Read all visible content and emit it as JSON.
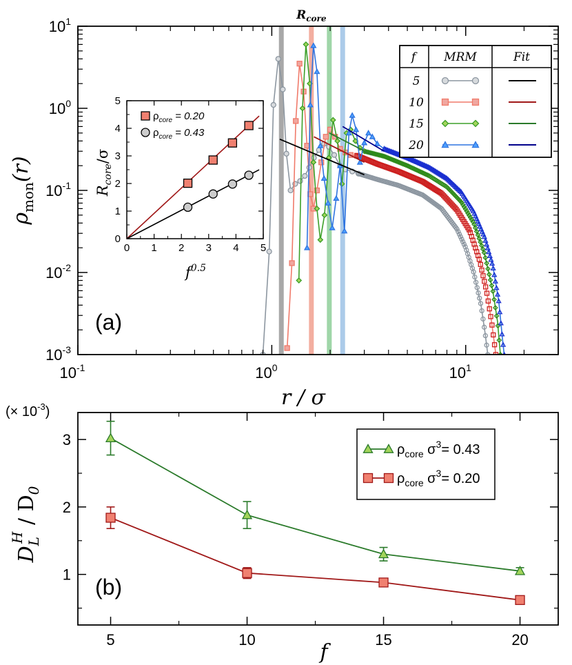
{
  "chart_data": [
    {
      "id": "a",
      "type": "line",
      "panel_label": "(a)",
      "title": "R_core",
      "xlabel": "r / σ",
      "ylabel": "ρ_mon(r)",
      "xscale": "log",
      "yscale": "log",
      "xlim": [
        0.1,
        30
      ],
      "ylim": [
        0.001,
        10
      ],
      "x_ticks": [
        {
          "base": "10",
          "exp": "-1",
          "value": 0.1
        },
        {
          "base": "10",
          "exp": "0",
          "value": 1
        },
        {
          "base": "10",
          "exp": "1",
          "value": 10
        }
      ],
      "y_ticks": [
        {
          "base": "10",
          "exp": "1",
          "value": 10
        },
        {
          "base": "10",
          "exp": "0",
          "value": 1
        },
        {
          "base": "10",
          "exp": "-1",
          "value": 0.1
        },
        {
          "base": "10",
          "exp": "-2",
          "value": 0.01
        },
        {
          "base": "10",
          "exp": "-3",
          "value": 0.001
        }
      ],
      "core_lines": [
        {
          "f": 5,
          "x": 1.12,
          "color": "#999999"
        },
        {
          "f": 10,
          "x": 1.6,
          "color": "#f2a090"
        },
        {
          "f": 15,
          "x": 1.98,
          "color": "#8fd09a"
        },
        {
          "f": 20,
          "x": 2.32,
          "color": "#9dc3e6"
        }
      ],
      "legend": {
        "header": {
          "f": "f",
          "mrm": "MRM",
          "fit": "Fit"
        },
        "rows": [
          {
            "f": "5",
            "marker": "circle",
            "color": "#8c96a0",
            "fill": "#d7dadd",
            "fit_color": "#000000"
          },
          {
            "f": "10",
            "marker": "square",
            "color": "#f07a6a",
            "fill": "#f0a7a0",
            "fit_color": "#a01818"
          },
          {
            "f": "15",
            "marker": "diamond",
            "color": "#3b9f28",
            "fill": "#a3d45b",
            "fit_color": "#2a7a2a"
          },
          {
            "f": "20",
            "marker": "triangle",
            "color": "#2f74e0",
            "fill": "#4da0ff",
            "fit_color": "#00008b"
          }
        ]
      },
      "series": [
        {
          "name": "f=5 MRM",
          "color": "#8c96a0",
          "dense_color": "#8c96a0",
          "points": [
            [
              0.9,
              0.001
            ],
            [
              0.97,
              0.018
            ],
            [
              1.02,
              1.1
            ],
            [
              1.08,
              4.0
            ],
            [
              1.14,
              1.7
            ],
            [
              1.19,
              0.28
            ],
            [
              1.25,
              0.1
            ],
            [
              1.32,
              0.12
            ],
            [
              1.4,
              0.13
            ],
            [
              1.48,
              0.15
            ],
            [
              1.56,
              0.19
            ],
            [
              1.65,
              0.25
            ],
            [
              1.75,
              0.31
            ],
            [
              1.86,
              0.37
            ],
            [
              1.97,
              0.34
            ],
            [
              2.1,
              0.27
            ],
            [
              2.25,
              0.2
            ],
            [
              2.4,
              0.18
            ],
            [
              2.6,
              0.17
            ],
            [
              2.8,
              0.16
            ]
          ],
          "tail": [
            [
              2.8,
              0.16
            ],
            [
              3.5,
              0.136
            ],
            [
              4.5,
              0.115
            ],
            [
              6,
              0.088
            ],
            [
              7.5,
              0.06
            ],
            [
              9,
              0.034
            ],
            [
              10,
              0.02
            ],
            [
              11,
              0.01
            ],
            [
              12,
              0.004
            ],
            [
              12.6,
              0.0018
            ],
            [
              13,
              0.001
            ]
          ]
        },
        {
          "name": "f=10 MRM",
          "color": "#f07a6a",
          "dense_color": "#cc1f1f",
          "points": [
            [
              1.2,
              0.0012
            ],
            [
              1.27,
              0.013
            ],
            [
              1.33,
              0.7
            ],
            [
              1.39,
              3.5
            ],
            [
              1.46,
              1.6
            ],
            [
              1.52,
              0.35
            ],
            [
              1.58,
              0.09
            ],
            [
              1.64,
              0.06
            ],
            [
              1.71,
              0.1
            ],
            [
              1.8,
              0.22
            ],
            [
              1.9,
              0.45
            ],
            [
              2.0,
              0.55
            ],
            [
              2.12,
              0.45
            ],
            [
              2.25,
              0.32
            ],
            [
              2.4,
              0.29
            ],
            [
              2.55,
              0.27
            ],
            [
              2.75,
              0.265
            ]
          ],
          "tail": [
            [
              2.75,
              0.265
            ],
            [
              3.5,
              0.21
            ],
            [
              4.5,
              0.17
            ],
            [
              6,
              0.128
            ],
            [
              7.5,
              0.092
            ],
            [
              9,
              0.058
            ],
            [
              10.5,
              0.032
            ],
            [
              11.8,
              0.014
            ],
            [
              12.8,
              0.006
            ],
            [
              13.6,
              0.0025
            ],
            [
              14.3,
              0.001
            ]
          ]
        },
        {
          "name": "f=15 MRM",
          "color": "#3b9f28",
          "dense_color": "#2f8a1a",
          "points": [
            [
              1.38,
              0.008
            ],
            [
              1.44,
              1.0
            ],
            [
              1.5,
              6.0
            ],
            [
              1.57,
              2.0
            ],
            [
              1.64,
              0.22
            ],
            [
              1.71,
              0.06
            ],
            [
              1.78,
              0.025
            ],
            [
              1.87,
              0.05
            ],
            [
              1.97,
              0.25
            ],
            [
              2.07,
              0.72
            ],
            [
              2.18,
              0.4
            ],
            [
              2.3,
              0.12
            ],
            [
              2.43,
              0.5
            ],
            [
              2.55,
              0.55
            ],
            [
              2.7,
              0.4
            ],
            [
              2.85,
              0.33
            ],
            [
              3.0,
              0.3
            ]
          ],
          "tail": [
            [
              3.0,
              0.3
            ],
            [
              3.8,
              0.26
            ],
            [
              5,
              0.2
            ],
            [
              6.5,
              0.15
            ],
            [
              8,
              0.11
            ],
            [
              9.5,
              0.072
            ],
            [
              11,
              0.04
            ],
            [
              12.5,
              0.017
            ],
            [
              13.8,
              0.006
            ],
            [
              14.6,
              0.0025
            ],
            [
              15.1,
              0.001
            ]
          ]
        },
        {
          "name": "f=20 MRM",
          "color": "#2f74e0",
          "dense_color": "#1a2fd0",
          "points": [
            [
              1.52,
              0.02
            ],
            [
              1.58,
              1.1
            ],
            [
              1.64,
              5.8
            ],
            [
              1.71,
              2.8
            ],
            [
              1.78,
              0.35
            ],
            [
              1.86,
              0.14
            ],
            [
              1.95,
              0.07
            ],
            [
              2.05,
              0.035
            ],
            [
              2.15,
              0.08
            ],
            [
              2.25,
              0.2
            ],
            [
              2.37,
              0.032
            ],
            [
              2.5,
              0.5
            ],
            [
              2.6,
              0.82
            ],
            [
              2.72,
              0.55
            ],
            [
              2.85,
              0.22
            ],
            [
              3.0,
              0.38
            ],
            [
              3.15,
              0.5
            ],
            [
              3.3,
              0.45
            ],
            [
              3.5,
              0.37
            ],
            [
              3.8,
              0.32
            ]
          ],
          "tail": [
            [
              3.8,
              0.32
            ],
            [
              5,
              0.25
            ],
            [
              6.5,
              0.19
            ],
            [
              8,
              0.14
            ],
            [
              9.5,
              0.095
            ],
            [
              11,
              0.055
            ],
            [
              12.5,
              0.027
            ],
            [
              13.8,
              0.012
            ],
            [
              14.8,
              0.0045
            ],
            [
              15.5,
              0.0015
            ],
            [
              15.8,
              0.001
            ]
          ]
        }
      ],
      "fits": [
        {
          "f": 5,
          "color": "#000000",
          "points": [
            [
              1.1,
              0.42
            ],
            [
              3.0,
              0.155
            ]
          ]
        },
        {
          "f": 10,
          "color": "#a01818",
          "points": [
            [
              1.65,
              0.45
            ],
            [
              3.0,
              0.22
            ]
          ]
        },
        {
          "f": 15,
          "color": "#2a7a2a",
          "points": [
            [
              1.98,
              0.5
            ],
            [
              3.3,
              0.27
            ]
          ]
        },
        {
          "f": 20,
          "color": "#00008b",
          "points": [
            [
              2.32,
              0.6
            ],
            [
              3.8,
              0.3
            ]
          ]
        }
      ]
    },
    {
      "id": "inset",
      "type": "scatter",
      "xlabel": "f^0.5",
      "ylabel": "R_core/σ",
      "xlim": [
        0,
        5
      ],
      "ylim": [
        0,
        5
      ],
      "x_ticks": [
        "0",
        "1",
        "2",
        "3",
        "4",
        "5"
      ],
      "y_ticks": [
        "0",
        "1",
        "2",
        "3",
        "4",
        "5"
      ],
      "legend": [
        {
          "label_prefix": "ρ",
          "label_sub": "core",
          "label_suffix": " = 0.20"
        },
        {
          "label_prefix": "ρ",
          "label_sub": "core",
          "label_suffix": " = 0.43"
        }
      ],
      "series": [
        {
          "name": "ρcore = 0.20",
          "marker": "square",
          "fill": "#f08070",
          "line_color": "#a01818",
          "x": [
            2.236,
            3.162,
            3.873,
            4.472
          ],
          "y": [
            2.01,
            2.85,
            3.47,
            4.1
          ],
          "slope": 0.917
        },
        {
          "name": "ρcore = 0.43",
          "marker": "circle",
          "fill": "#cccccc",
          "line_color": "#000000",
          "x": [
            2.236,
            3.162,
            3.873,
            4.472
          ],
          "y": [
            1.14,
            1.62,
            1.98,
            2.3
          ],
          "slope": 0.515
        }
      ]
    },
    {
      "id": "b",
      "type": "line",
      "panel_label": "(b)",
      "xlabel": "f",
      "ylabel": "D_L^H / D_0",
      "multiplier": {
        "text": "(× 10",
        "exp": "-3",
        "close": ")"
      },
      "xlim": [
        3.8,
        21.4
      ],
      "ylim": [
        0.25,
        3.4
      ],
      "x_ticks": [
        "5",
        "10",
        "15",
        "20"
      ],
      "y_ticks": [
        "1",
        "2",
        "3"
      ],
      "legend": [
        {
          "label_prefix": "ρ",
          "label_sub": "core",
          "label_mid": " σ",
          "label_sup": "3",
          "label_suffix": "= 0.43"
        },
        {
          "label_prefix": "ρ",
          "label_sub": "core",
          "label_mid": " σ",
          "label_sup": "3",
          "label_suffix": "= 0.20"
        }
      ],
      "series": [
        {
          "name": "ρcore σ3 = 0.43",
          "marker": "triangle",
          "line_color": "#2a7a2a",
          "fill": "#a3d45b",
          "x": [
            5,
            10,
            15,
            20
          ],
          "y": [
            3.02,
            1.88,
            1.3,
            1.05
          ],
          "err": [
            0.25,
            0.2,
            0.1,
            0.05
          ]
        },
        {
          "name": "ρcore σ3 = 0.20",
          "marker": "square",
          "line_color": "#a01818",
          "fill": "#f08070",
          "x": [
            5,
            10,
            15,
            20
          ],
          "y": [
            1.84,
            1.02,
            0.88,
            0.62
          ],
          "err": [
            0.16,
            0.08,
            0.04,
            0.04
          ]
        }
      ]
    }
  ]
}
